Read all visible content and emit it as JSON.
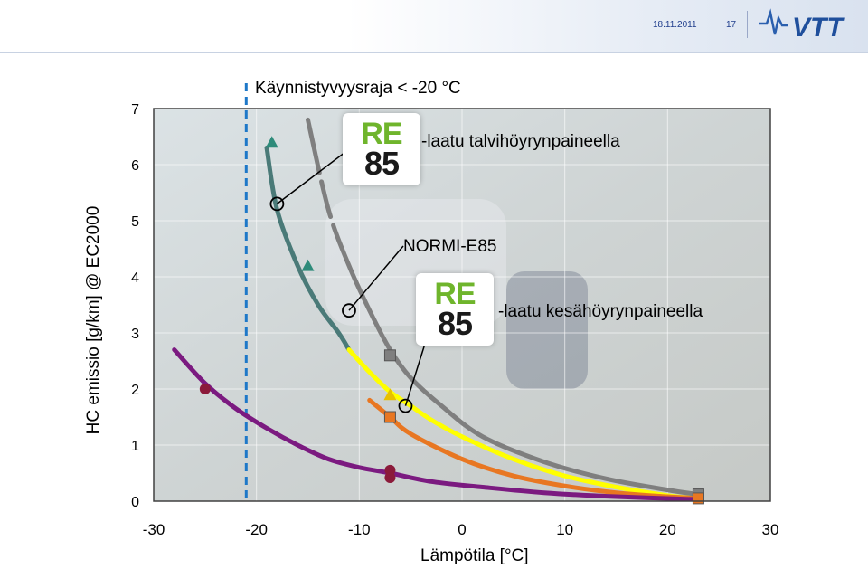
{
  "header": {
    "date": "18.11.2011",
    "page_number": "17",
    "logo_icon": "vtt-logo-icon"
  },
  "annotations": {
    "start_limit": "Käynnistyvyysraja < -20 °C",
    "winter": "-laatu talvihöyrynpaineella",
    "normi": "NORMI-E85",
    "summer": "-laatu kesähöyrynpaineella",
    "badge_top": "RE",
    "badge_bottom": "85"
  },
  "chart_data": {
    "type": "line",
    "xlabel": "Lämpötila [°C]",
    "ylabel": "HC emissio [g/km] @ EC2000",
    "xlim": [
      -30,
      30
    ],
    "ylim": [
      0,
      7
    ],
    "xticks": [
      -30,
      -20,
      -10,
      0,
      10,
      20,
      30
    ],
    "yticks": [
      0,
      1,
      2,
      3,
      4,
      5,
      6,
      7
    ],
    "grid": true,
    "vertical_reference_x": -21,
    "series": [
      {
        "color": "#4a7a78",
        "x": [
          -19,
          -18,
          -16,
          -14,
          -12,
          -11
        ],
        "y": [
          6.3,
          5.2,
          4.2,
          3.5,
          3.0,
          2.7
        ]
      },
      {
        "color": "#ffff00",
        "x": [
          -11,
          -9,
          -7,
          -5,
          -3,
          0,
          5,
          10,
          15,
          20,
          23
        ],
        "y": [
          2.7,
          2.3,
          1.95,
          1.7,
          1.45,
          1.15,
          0.75,
          0.45,
          0.25,
          0.1,
          0.05
        ]
      },
      {
        "color": "#7f7f7f",
        "x": [
          -15,
          -13,
          -11,
          -9,
          -7,
          -5,
          -2,
          2,
          8,
          14,
          20,
          23
        ],
        "y": [
          6.8,
          5.2,
          4.2,
          3.4,
          2.7,
          2.2,
          1.7,
          1.15,
          0.7,
          0.4,
          0.2,
          0.12
        ]
      },
      {
        "color": "#e87722",
        "x": [
          -9,
          -7,
          -5,
          0,
          5,
          10,
          15,
          20,
          23
        ],
        "y": [
          1.8,
          1.5,
          1.2,
          0.75,
          0.45,
          0.27,
          0.15,
          0.08,
          0.05
        ]
      },
      {
        "color": "#7b1a80",
        "x": [
          -28,
          -25,
          -22,
          -19,
          -16,
          -13,
          -10,
          -7,
          -3,
          2,
          8,
          15,
          23
        ],
        "y": [
          2.7,
          2.1,
          1.65,
          1.3,
          1.0,
          0.75,
          0.6,
          0.5,
          0.35,
          0.25,
          0.15,
          0.08,
          0.03
        ]
      }
    ],
    "markers": [
      {
        "shape": "triangle",
        "color": "#2e8b7a",
        "x": -18.5,
        "y": 6.4
      },
      {
        "shape": "triangle",
        "color": "#2e8b7a",
        "x": -15,
        "y": 4.2
      },
      {
        "shape": "circle",
        "color": "#8b1a3a",
        "x": -25,
        "y": 2.0
      },
      {
        "shape": "circle",
        "color": "#8b1a3a",
        "x": -7,
        "y": 0.55
      },
      {
        "shape": "circle",
        "color": "#8b1a3a",
        "x": -7,
        "y": 0.42
      },
      {
        "shape": "square",
        "color": "#7f7f7f",
        "x": -7,
        "y": 2.6
      },
      {
        "shape": "square",
        "color": "#7f7f7f",
        "x": 23,
        "y": 0.12
      },
      {
        "shape": "square",
        "color": "#e87722",
        "x": -7,
        "y": 1.5
      },
      {
        "shape": "square",
        "color": "#e87722",
        "x": 23,
        "y": 0.05
      },
      {
        "shape": "triangle",
        "color": "#e8c000",
        "x": -7,
        "y": 1.9
      }
    ],
    "callouts": [
      {
        "x": -18,
        "y": 5.3
      },
      {
        "x": -11,
        "y": 3.4
      },
      {
        "x": -5.5,
        "y": 1.7
      }
    ]
  }
}
